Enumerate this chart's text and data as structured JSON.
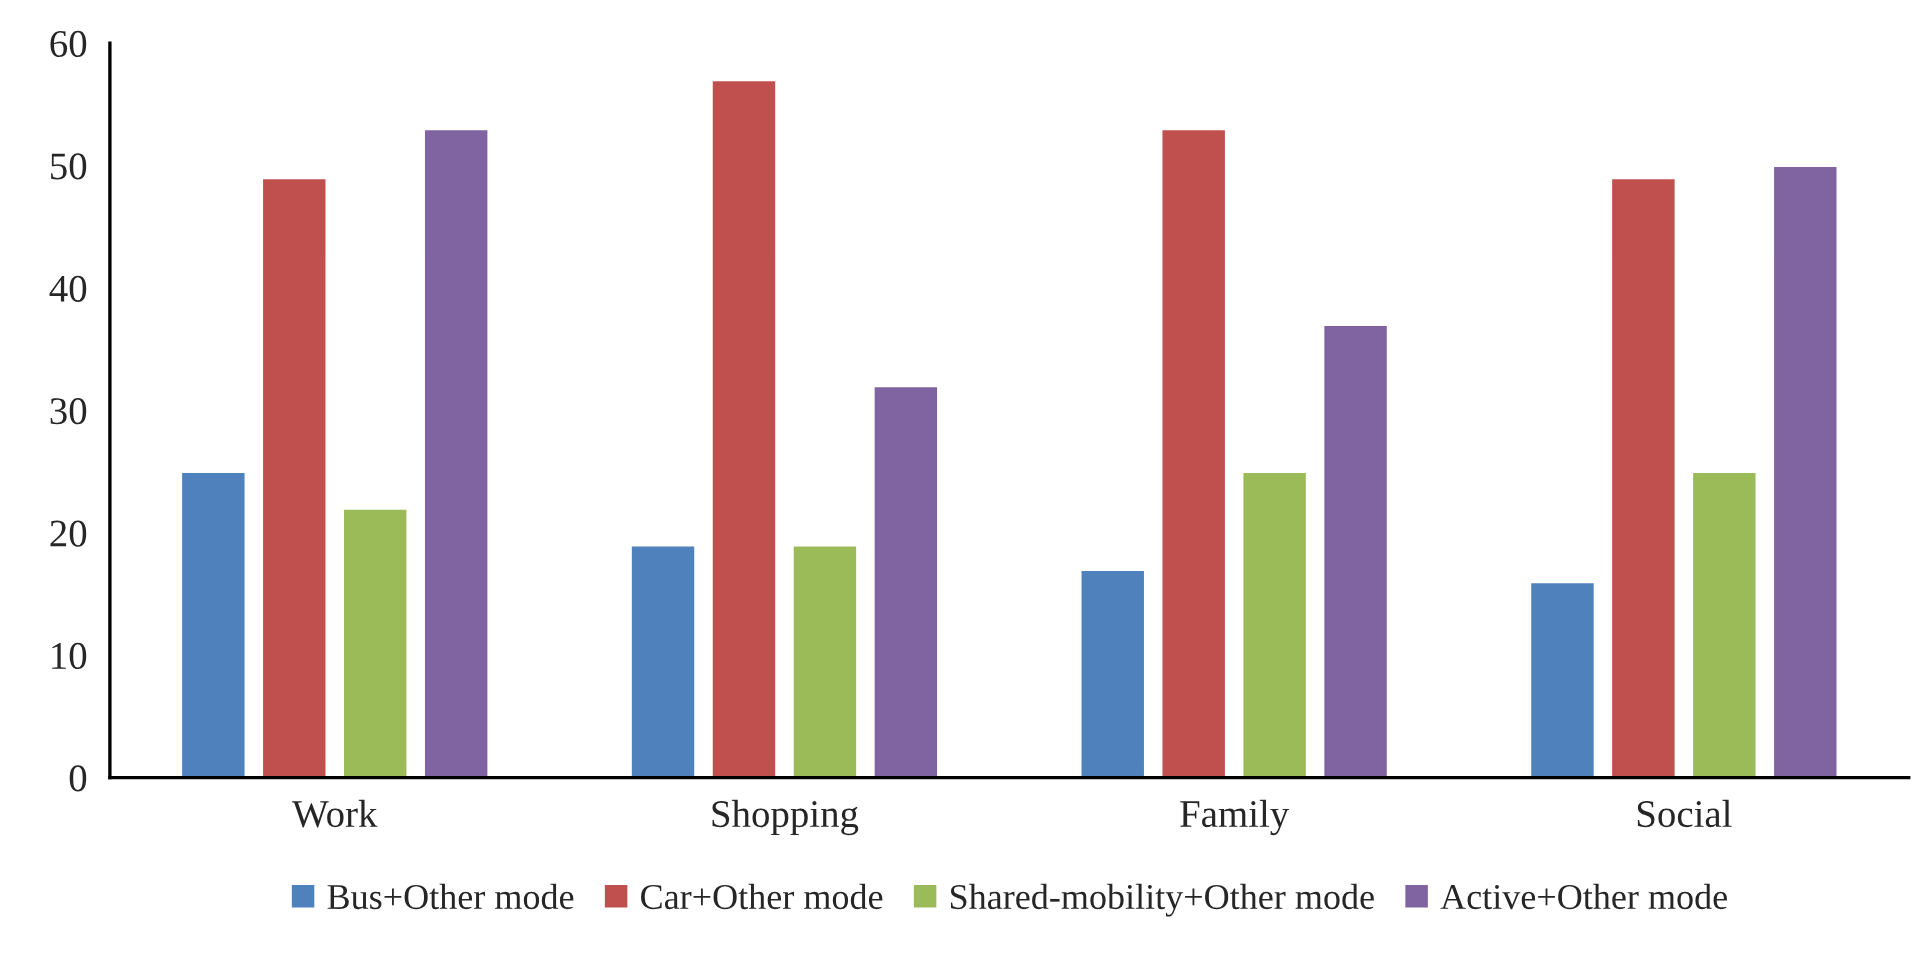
{
  "chart_data": {
    "type": "bar",
    "categories": [
      "Work",
      "Shopping",
      "Family",
      "Social"
    ],
    "series": [
      {
        "name": "Bus+Other mode",
        "color": "#4f81bd",
        "values": [
          25,
          19,
          17,
          16
        ]
      },
      {
        "name": "Car+Other mode",
        "color": "#c0504d",
        "values": [
          49,
          57,
          53,
          49
        ]
      },
      {
        "name": "Shared-mobility+Other mode",
        "color": "#9bbb59",
        "values": [
          22,
          19,
          25,
          25
        ]
      },
      {
        "name": "Active+Other mode",
        "color": "#8064a2",
        "values": [
          53,
          32,
          37,
          50
        ]
      }
    ],
    "ylim": [
      0,
      60
    ],
    "yticks": [
      0,
      10,
      20,
      30,
      40,
      50,
      60
    ],
    "grid": false,
    "legend": "bottom"
  }
}
